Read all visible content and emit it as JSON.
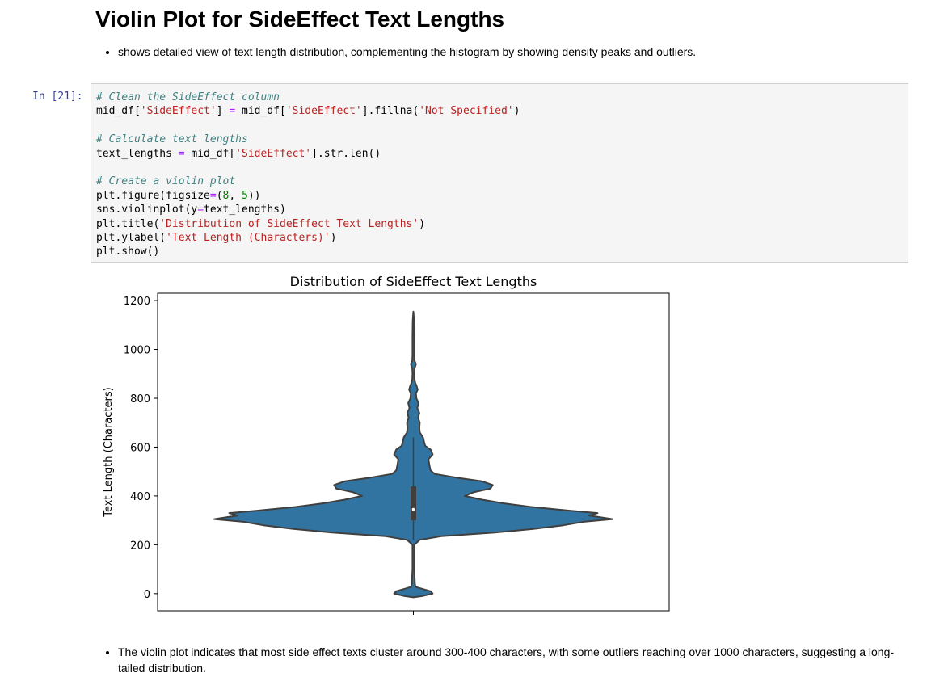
{
  "heading": "Violin Plot for SideEffect Text Lengths",
  "intro_bullets": [
    "shows detailed view of text length distribution, complementing the histogram by showing density peaks and outliers."
  ],
  "cell": {
    "prompt": "In [21]:",
    "code_lines": [
      [
        {
          "t": "comment",
          "v": "# Clean the SideEffect column"
        }
      ],
      [
        {
          "t": "name",
          "v": "mid_df["
        },
        {
          "t": "string",
          "v": "'SideEffect'"
        },
        {
          "t": "name",
          "v": "] "
        },
        {
          "t": "op",
          "v": "="
        },
        {
          "t": "name",
          "v": " mid_df["
        },
        {
          "t": "string",
          "v": "'SideEffect'"
        },
        {
          "t": "name",
          "v": "].fillna("
        },
        {
          "t": "string",
          "v": "'Not Specified'"
        },
        {
          "t": "name",
          "v": ")"
        }
      ],
      [],
      [
        {
          "t": "comment",
          "v": "# Calculate text lengths"
        }
      ],
      [
        {
          "t": "name",
          "v": "text_lengths "
        },
        {
          "t": "op",
          "v": "="
        },
        {
          "t": "name",
          "v": " mid_df["
        },
        {
          "t": "string",
          "v": "'SideEffect'"
        },
        {
          "t": "name",
          "v": "].str.len()"
        }
      ],
      [],
      [
        {
          "t": "comment",
          "v": "# Create a violin plot"
        }
      ],
      [
        {
          "t": "name",
          "v": "plt.figure(figsize"
        },
        {
          "t": "op",
          "v": "="
        },
        {
          "t": "name",
          "v": "("
        },
        {
          "t": "number",
          "v": "8"
        },
        {
          "t": "name",
          "v": ", "
        },
        {
          "t": "number",
          "v": "5"
        },
        {
          "t": "name",
          "v": "))"
        }
      ],
      [
        {
          "t": "name",
          "v": "sns.violinplot(y"
        },
        {
          "t": "op",
          "v": "="
        },
        {
          "t": "name",
          "v": "text_lengths)"
        }
      ],
      [
        {
          "t": "name",
          "v": "plt.title("
        },
        {
          "t": "string",
          "v": "'Distribution of SideEffect Text Lengths'"
        },
        {
          "t": "name",
          "v": ")"
        }
      ],
      [
        {
          "t": "name",
          "v": "plt.ylabel("
        },
        {
          "t": "string",
          "v": "'Text Length (Characters)'"
        },
        {
          "t": "name",
          "v": ")"
        }
      ],
      [
        {
          "t": "name",
          "v": "plt.show()"
        }
      ]
    ]
  },
  "chart_data": {
    "type": "violin",
    "title": "Distribution of SideEffect Text Lengths",
    "xlabel": "",
    "ylabel": "Text Length (Characters)",
    "ylim": [
      -70,
      1230
    ],
    "yticks": [
      0,
      200,
      400,
      600,
      800,
      1000,
      1200
    ],
    "color": "#3274a1",
    "edge_color": "#3f3f3f",
    "density_profile": [
      [
        -15,
        0.0
      ],
      [
        -10,
        0.04
      ],
      [
        0,
        0.09
      ],
      [
        10,
        0.08
      ],
      [
        20,
        0.04
      ],
      [
        28,
        0.01
      ],
      [
        40,
        0.007
      ],
      [
        100,
        0.004
      ],
      [
        150,
        0.004
      ],
      [
        200,
        0.004
      ],
      [
        220,
        0.03
      ],
      [
        235,
        0.13
      ],
      [
        250,
        0.38
      ],
      [
        265,
        0.56
      ],
      [
        280,
        0.7
      ],
      [
        295,
        0.8
      ],
      [
        305,
        0.93
      ],
      [
        320,
        0.82
      ],
      [
        330,
        0.86
      ],
      [
        340,
        0.73
      ],
      [
        355,
        0.55
      ],
      [
        370,
        0.42
      ],
      [
        385,
        0.32
      ],
      [
        400,
        0.24
      ],
      [
        415,
        0.28
      ],
      [
        430,
        0.36
      ],
      [
        445,
        0.37
      ],
      [
        460,
        0.32
      ],
      [
        475,
        0.2
      ],
      [
        490,
        0.1
      ],
      [
        505,
        0.08
      ],
      [
        525,
        0.075
      ],
      [
        550,
        0.07
      ],
      [
        570,
        0.09
      ],
      [
        590,
        0.08
      ],
      [
        605,
        0.055
      ],
      [
        620,
        0.05
      ],
      [
        640,
        0.045
      ],
      [
        660,
        0.03
      ],
      [
        680,
        0.028
      ],
      [
        700,
        0.03
      ],
      [
        720,
        0.022
      ],
      [
        740,
        0.028
      ],
      [
        760,
        0.018
      ],
      [
        780,
        0.024
      ],
      [
        800,
        0.014
      ],
      [
        820,
        0.012
      ],
      [
        835,
        0.02
      ],
      [
        850,
        0.015
      ],
      [
        865,
        0.008
      ],
      [
        880,
        0.005
      ],
      [
        900,
        0.004
      ],
      [
        920,
        0.005
      ],
      [
        940,
        0.012
      ],
      [
        955,
        0.005
      ],
      [
        980,
        0.004
      ],
      [
        1050,
        0.004
      ],
      [
        1120,
        0.003
      ],
      [
        1155,
        0.0
      ]
    ],
    "box": {
      "q1": 300,
      "median": 345,
      "q3": 440,
      "whisker_low": 220,
      "whisker_high": 640,
      "min": -15,
      "max": 1155
    }
  },
  "summary_bullets": [
    "The violin plot indicates that most side effect texts cluster around 300-400 characters, with some outliers reaching over 1000 characters, suggesting a long-tailed distribution."
  ]
}
